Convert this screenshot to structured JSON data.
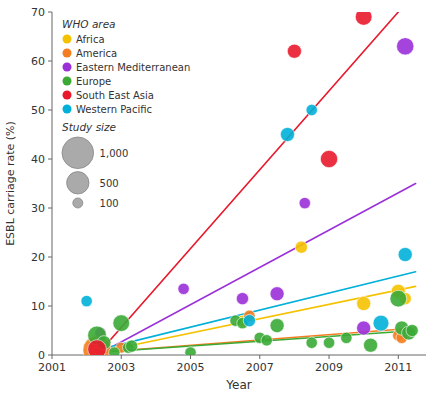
{
  "chart_data": {
    "type": "scatter",
    "x_label": "Year",
    "y_label": "ESBL carriage rate (%)",
    "xlim": [
      2001,
      2011.8
    ],
    "ylim": [
      0,
      70
    ],
    "xticks": [
      2001,
      2003,
      2005,
      2007,
      2009,
      2011
    ],
    "yticks": [
      0,
      10,
      20,
      30,
      40,
      50,
      60,
      70
    ],
    "grid": false,
    "legend": "upper left",
    "legend_title": "WHO area",
    "size_legend": {
      "title": "Study size",
      "sizes": [
        {
          "value": 1000,
          "label": "1,000"
        },
        500,
        100
      ]
    },
    "series": [
      {
        "name": "Africa",
        "color": "#f5c200",
        "x": [
          2002.3,
          2006.5,
          2008.2,
          2010.0,
          2011.0,
          2011.2
        ],
        "values": [
          3.0,
          7.0,
          22.0,
          10.5,
          13.0,
          11.5
        ],
        "sizes": [
          150,
          120,
          150,
          200,
          200,
          150
        ],
        "trend_x": [
          2002.3,
          2011.5
        ],
        "trend_values": [
          0.5,
          14.0
        ]
      },
      {
        "name": "America",
        "color": "#f47d20",
        "x": [
          2002.3,
          2003.0,
          2006.7,
          2011.0,
          2011.1
        ],
        "values": [
          1.0,
          1.5,
          8.0,
          4.0,
          3.5
        ],
        "sizes": [
          800,
          120,
          130,
          130,
          130
        ],
        "trend_x": [
          2002.3,
          2011.5
        ],
        "trend_values": [
          0.5,
          5.5
        ]
      },
      {
        "name": "Eastern Mediterranean",
        "color": "#9b30d9",
        "x": [
          2002.4,
          2004.8,
          2006.5,
          2007.5,
          2008.3,
          2010.0,
          2011.2
        ],
        "values": [
          4.5,
          13.5,
          11.5,
          12.5,
          31.0,
          5.5,
          63.0
        ],
        "sizes": [
          130,
          130,
          150,
          200,
          130,
          200,
          300
        ],
        "trend_x": [
          2002.3,
          2011.5
        ],
        "trend_values": [
          0.0,
          35.0
        ]
      },
      {
        "name": "Europe",
        "color": "#3aaa35",
        "x": [
          2002.3,
          2002.5,
          2002.8,
          2003.0,
          2003.2,
          2003.3,
          2005.0,
          2006.3,
          2006.5,
          2007.0,
          2007.2,
          2007.5,
          2008.5,
          2009.0,
          2009.5,
          2010.2,
          2011.0,
          2011.1,
          2011.3,
          2011.4
        ],
        "values": [
          4.0,
          2.5,
          0.5,
          6.5,
          1.5,
          1.8,
          0.5,
          7.0,
          6.5,
          3.5,
          3.0,
          6.0,
          2.5,
          2.5,
          3.5,
          2.0,
          11.5,
          5.5,
          4.5,
          5.0
        ],
        "sizes": [
          350,
          200,
          130,
          280,
          130,
          150,
          130,
          130,
          130,
          130,
          130,
          200,
          130,
          130,
          130,
          200,
          280,
          200,
          200,
          150
        ],
        "trend_x": [
          2002.3,
          2011.5
        ],
        "trend_values": [
          0.5,
          5.0
        ]
      },
      {
        "name": "South East Asia",
        "color": "#e8192c",
        "x": [
          2002.3,
          2008.0,
          2009.0,
          2010.0
        ],
        "values": [
          1.2,
          62.0,
          40.0,
          69.0
        ],
        "sizes": [
          350,
          200,
          300,
          280
        ],
        "trend_x": [
          2002.3,
          2011.0
        ],
        "trend_values": [
          0.0,
          70.0
        ]
      },
      {
        "name": "Western Pacific",
        "color": "#00b0d8",
        "x": [
          2002.0,
          2006.7,
          2007.8,
          2008.5,
          2010.5,
          2011.2
        ],
        "values": [
          11.0,
          7.0,
          45.0,
          50.0,
          6.5,
          20.5
        ],
        "sizes": [
          130,
          150,
          200,
          130,
          250,
          200
        ],
        "trend_x": [
          2002.3,
          2011.5
        ],
        "trend_values": [
          1.0,
          17.0
        ]
      }
    ]
  }
}
